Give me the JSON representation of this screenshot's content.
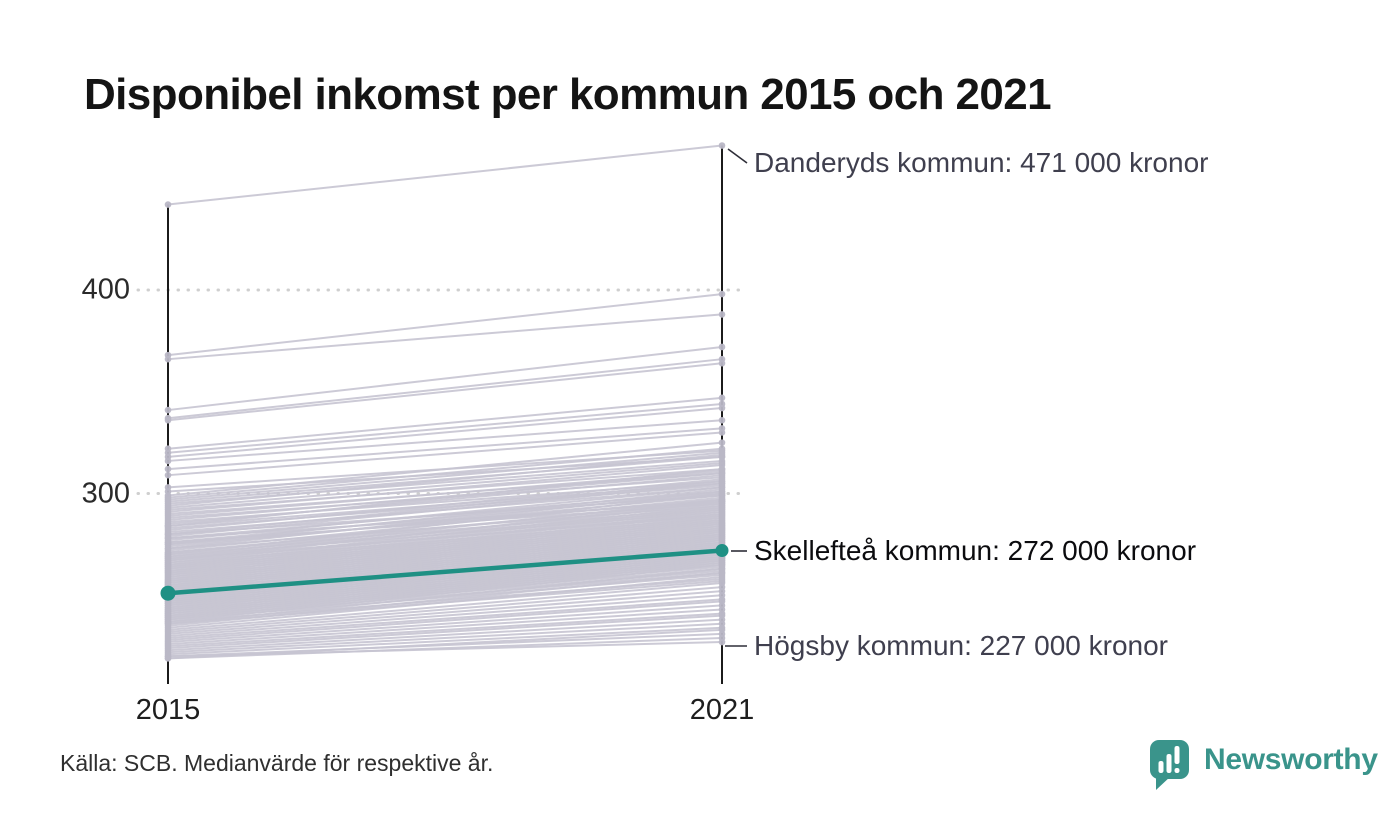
{
  "title": "Disponibel inkomst per kommun 2015 och 2021",
  "source": "Källa: SCB. Medianvärde för respektive år.",
  "branding": {
    "wordmark": "Newsworthy",
    "brand_color": "#3a948b",
    "logo_icon": "speech-bubble-bar-chart-exclamation"
  },
  "chart_data": {
    "type": "line",
    "subtype": "slope-chart",
    "x": [
      2015,
      2021
    ],
    "x_labels": [
      "2015",
      "2021"
    ],
    "y_ticks": [
      {
        "value": 400,
        "label": "400"
      },
      {
        "value": 300,
        "label": "300"
      }
    ],
    "ylim": [
      210,
      480
    ],
    "grid": "dotted-horizontal",
    "legend": "none",
    "line_color": "#c7c5d2",
    "dot_color": "#b9b7c6",
    "axis_color": "#1b1b1b",
    "highlight_color": "#1f9084",
    "annotations": [
      {
        "name": "danderyd",
        "label": "Danderyds kommun: 471 000 kronor",
        "year": 2021,
        "value": 471
      },
      {
        "name": "skelleftea",
        "label": "Skellefteå kommun: 272 000 kronor",
        "year": 2021,
        "value": 272
      },
      {
        "name": "hogsby",
        "label": "Högsby kommun: 227 000 kronor",
        "year": 2021,
        "value": 227
      }
    ],
    "highlight_series": {
      "name": "Skellefteå kommun",
      "values": [
        251,
        272
      ]
    },
    "notable_series": {
      "Danderyds kommun": [
        442,
        471
      ],
      "Högsby kommun": [
        220,
        227
      ]
    },
    "background_lines": [
      [
        442,
        471
      ],
      [
        368,
        398
      ],
      [
        366,
        388
      ],
      [
        341,
        372
      ],
      [
        337,
        366
      ],
      [
        336,
        364
      ],
      [
        322,
        347
      ],
      [
        320,
        344
      ],
      [
        318,
        342
      ],
      [
        316,
        336
      ],
      [
        312,
        332
      ],
      [
        309,
        330
      ],
      [
        303,
        321
      ],
      [
        301,
        318
      ],
      [
        299,
        325
      ],
      [
        298,
        322
      ],
      [
        297,
        320
      ],
      [
        296,
        318
      ],
      [
        295,
        316
      ],
      [
        294,
        319
      ],
      [
        293,
        315
      ],
      [
        292,
        312
      ],
      [
        291,
        314
      ],
      [
        290,
        310
      ],
      [
        289,
        311
      ],
      [
        288,
        308
      ],
      [
        287,
        310
      ],
      [
        286,
        306
      ],
      [
        285,
        309
      ],
      [
        284,
        305
      ],
      [
        284,
        312
      ],
      [
        283,
        304
      ],
      [
        282,
        307
      ],
      [
        281,
        303
      ],
      [
        280,
        306
      ],
      [
        280,
        299
      ],
      [
        279,
        305
      ],
      [
        278,
        301
      ],
      [
        278,
        296
      ],
      [
        277,
        303
      ],
      [
        276,
        300
      ],
      [
        276,
        295
      ],
      [
        275,
        302
      ],
      [
        275,
        297
      ],
      [
        274,
        299
      ],
      [
        273,
        301
      ],
      [
        273,
        294
      ],
      [
        272,
        298
      ],
      [
        271,
        296
      ],
      [
        271,
        293
      ],
      [
        270,
        300
      ],
      [
        270,
        292
      ],
      [
        269,
        297
      ],
      [
        269,
        291
      ],
      [
        268,
        295
      ],
      [
        268,
        289
      ],
      [
        267,
        296
      ],
      [
        267,
        290
      ],
      [
        266,
        294
      ],
      [
        266,
        288
      ],
      [
        265,
        293
      ],
      [
        265,
        287
      ],
      [
        264,
        292
      ],
      [
        264,
        286
      ],
      [
        263,
        291
      ],
      [
        263,
        285
      ],
      [
        262,
        290
      ],
      [
        262,
        284
      ],
      [
        261,
        289
      ],
      [
        261,
        283
      ],
      [
        260,
        288
      ],
      [
        260,
        282
      ],
      [
        259,
        287
      ],
      [
        259,
        281
      ],
      [
        258,
        286
      ],
      [
        258,
        280
      ],
      [
        257,
        285
      ],
      [
        257,
        279
      ],
      [
        256,
        284
      ],
      [
        256,
        278
      ],
      [
        255,
        283
      ],
      [
        255,
        277
      ],
      [
        254,
        282
      ],
      [
        254,
        276
      ],
      [
        253,
        281
      ],
      [
        253,
        275
      ],
      [
        252,
        280
      ],
      [
        252,
        274
      ],
      [
        251,
        279
      ],
      [
        251,
        273
      ],
      [
        250,
        278
      ],
      [
        250,
        272
      ],
      [
        249,
        277
      ],
      [
        249,
        271
      ],
      [
        248,
        276
      ],
      [
        248,
        270
      ],
      [
        247,
        275
      ],
      [
        247,
        269
      ],
      [
        246,
        274
      ],
      [
        246,
        268
      ],
      [
        245,
        273
      ],
      [
        245,
        267
      ],
      [
        244,
        272
      ],
      [
        244,
        266
      ],
      [
        243,
        271
      ],
      [
        243,
        265
      ],
      [
        242,
        270
      ],
      [
        242,
        264
      ],
      [
        241,
        269
      ],
      [
        241,
        263
      ],
      [
        240,
        268
      ],
      [
        240,
        262
      ],
      [
        239,
        267
      ],
      [
        239,
        261
      ],
      [
        238,
        266
      ],
      [
        238,
        260
      ],
      [
        237,
        265
      ],
      [
        237,
        258
      ],
      [
        236,
        263
      ],
      [
        236,
        257
      ],
      [
        235,
        261
      ],
      [
        234,
        259
      ],
      [
        233,
        256
      ],
      [
        232,
        254
      ],
      [
        231,
        252
      ],
      [
        230,
        250
      ],
      [
        229,
        248
      ],
      [
        228,
        247
      ],
      [
        227,
        245
      ],
      [
        226,
        243
      ],
      [
        225,
        241
      ],
      [
        224,
        240
      ],
      [
        223,
        238
      ],
      [
        222,
        236
      ],
      [
        221,
        234
      ],
      [
        220,
        231
      ],
      [
        219,
        233
      ],
      [
        219,
        229
      ],
      [
        220,
        227
      ]
    ]
  }
}
